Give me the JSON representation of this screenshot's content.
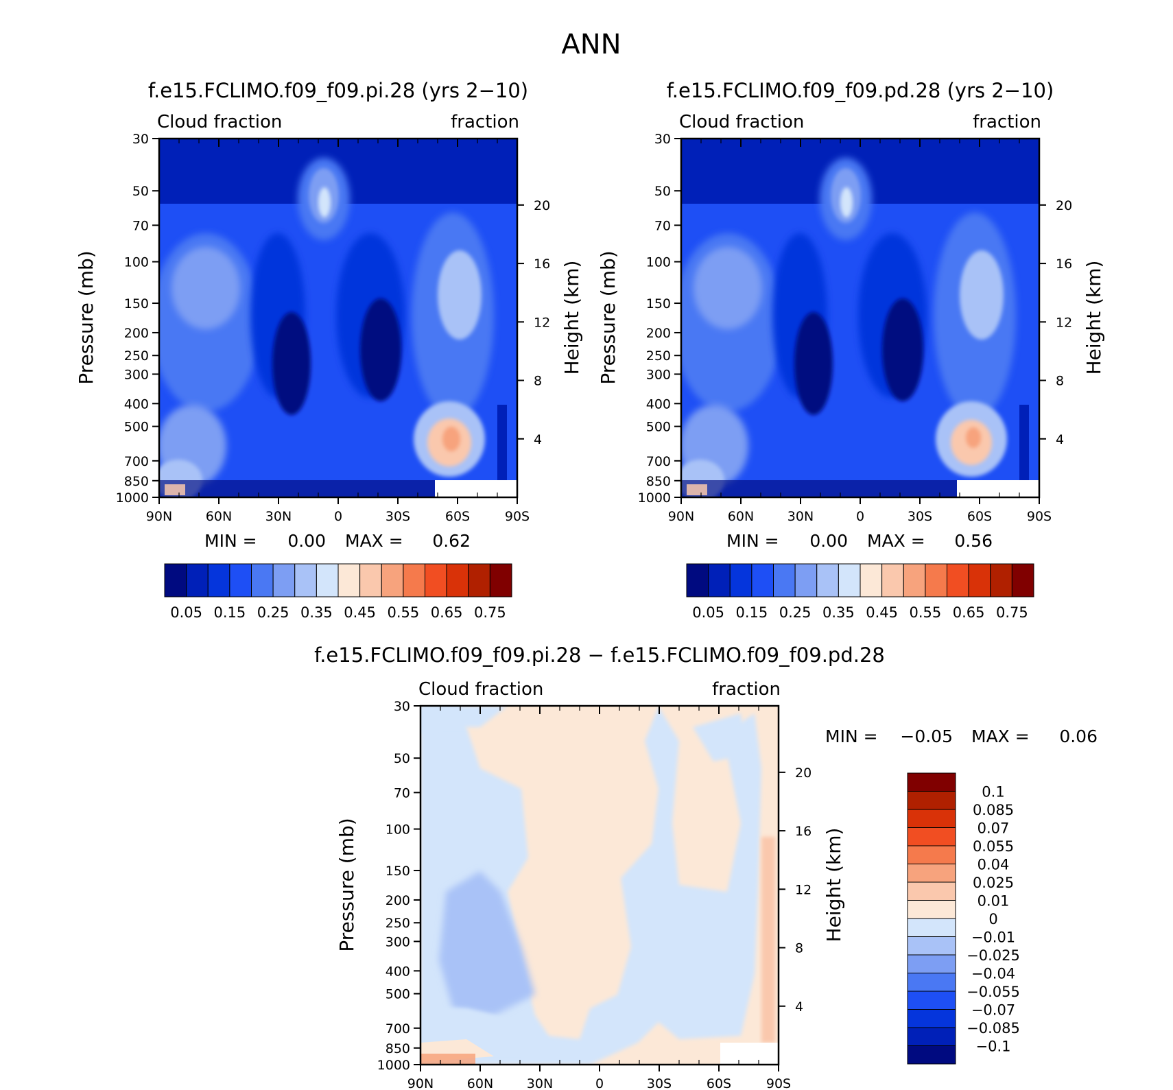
{
  "figure_title": "ANN",
  "chart_data": [
    {
      "type": "heatmap",
      "title": "f.e15.FCLIMO.f09_f09.pi.28 (yrs 2−10)",
      "left_label": "Cloud fraction",
      "right_label": "fraction",
      "ylabel": "Pressure (mb)",
      "ylabel_right": "Height (km)",
      "x_ticks": [
        "90N",
        "60N",
        "30N",
        "0",
        "30S",
        "60S",
        "90S"
      ],
      "x_values": [
        90,
        60,
        30,
        0,
        -30,
        -60,
        -90
      ],
      "y_ticks": [
        "30",
        "50",
        "70",
        "100",
        "150",
        "200",
        "250",
        "300",
        "400",
        "500",
        "700",
        "850",
        "1000"
      ],
      "y_values": [
        30,
        50,
        70,
        100,
        150,
        200,
        250,
        300,
        400,
        500,
        700,
        850,
        1000
      ],
      "y_right_ticks": [
        "20",
        "16",
        "12",
        "8",
        "4"
      ],
      "y_right_values": [
        20,
        16,
        12,
        8,
        4
      ],
      "ylim": [
        1000,
        30
      ],
      "xlim": [
        90,
        -90
      ],
      "min_label": "MIN =",
      "min_value": "0.00",
      "max_label": "MAX =",
      "max_value": "0.62",
      "colorbar_labels": [
        "0.05",
        "0.15",
        "0.25",
        "0.35",
        "0.45",
        "0.55",
        "0.65",
        "0.75"
      ],
      "colorbar_colors": [
        "#000a80",
        "#0020b8",
        "#0535dc",
        "#1e4ff5",
        "#4a78f3",
        "#7d9ef3",
        "#a9c2f7",
        "#d3e5fb",
        "#fce8d7",
        "#fac8ad",
        "#f7a37d",
        "#f57a4c",
        "#f14e22",
        "#d93208",
        "#b02000",
        "#800000"
      ]
    },
    {
      "type": "heatmap",
      "title": "f.e15.FCLIMO.f09_f09.pd.28 (yrs 2−10)",
      "left_label": "Cloud fraction",
      "right_label": "fraction",
      "ylabel": "Pressure (mb)",
      "ylabel_right": "Height (km)",
      "x_ticks": [
        "90N",
        "60N",
        "30N",
        "0",
        "30S",
        "60S",
        "90S"
      ],
      "x_values": [
        90,
        60,
        30,
        0,
        -30,
        -60,
        -90
      ],
      "y_ticks": [
        "30",
        "50",
        "70",
        "100",
        "150",
        "200",
        "250",
        "300",
        "400",
        "500",
        "700",
        "850",
        "1000"
      ],
      "y_values": [
        30,
        50,
        70,
        100,
        150,
        200,
        250,
        300,
        400,
        500,
        700,
        850,
        1000
      ],
      "y_right_ticks": [
        "20",
        "16",
        "12",
        "8",
        "4"
      ],
      "y_right_values": [
        20,
        16,
        12,
        8,
        4
      ],
      "ylim": [
        1000,
        30
      ],
      "xlim": [
        90,
        -90
      ],
      "min_label": "MIN =",
      "min_value": "0.00",
      "max_label": "MAX =",
      "max_value": "0.56",
      "colorbar_labels": [
        "0.05",
        "0.15",
        "0.25",
        "0.35",
        "0.45",
        "0.55",
        "0.65",
        "0.75"
      ],
      "colorbar_colors": [
        "#000a80",
        "#0020b8",
        "#0535dc",
        "#1e4ff5",
        "#4a78f3",
        "#7d9ef3",
        "#a9c2f7",
        "#d3e5fb",
        "#fce8d7",
        "#fac8ad",
        "#f7a37d",
        "#f57a4c",
        "#f14e22",
        "#d93208",
        "#b02000",
        "#800000"
      ]
    },
    {
      "type": "heatmap",
      "title": "f.e15.FCLIMO.f09_f09.pi.28 − f.e15.FCLIMO.f09_f09.pd.28",
      "left_label": "Cloud fraction",
      "right_label": "fraction",
      "ylabel": "Pressure (mb)",
      "ylabel_right": "Height (km)",
      "x_ticks": [
        "90N",
        "60N",
        "30N",
        "0",
        "30S",
        "60S",
        "90S"
      ],
      "x_values": [
        90,
        60,
        30,
        0,
        -30,
        -60,
        -90
      ],
      "y_ticks": [
        "30",
        "50",
        "70",
        "100",
        "150",
        "200",
        "250",
        "300",
        "400",
        "500",
        "700",
        "850",
        "1000"
      ],
      "y_values": [
        30,
        50,
        70,
        100,
        150,
        200,
        250,
        300,
        400,
        500,
        700,
        850,
        1000
      ],
      "y_right_ticks": [
        "20",
        "16",
        "12",
        "8",
        "4"
      ],
      "y_right_values": [
        20,
        16,
        12,
        8,
        4
      ],
      "ylim": [
        1000,
        30
      ],
      "xlim": [
        90,
        -90
      ],
      "min_label": "MIN =",
      "min_value": "−0.05",
      "max_label": "MAX =",
      "max_value": "0.06",
      "colorbar_labels": [
        "0.1",
        "0.085",
        "0.07",
        "0.055",
        "0.04",
        "0.025",
        "0.01",
        "0",
        "−0.01",
        "−0.025",
        "−0.04",
        "−0.055",
        "−0.07",
        "−0.085",
        "−0.1"
      ],
      "colorbar_colors": [
        "#800000",
        "#b02000",
        "#d93208",
        "#f14e22",
        "#f57a4c",
        "#f7a37d",
        "#fac8ad",
        "#fce8d7",
        "#d3e5fb",
        "#a9c2f7",
        "#7d9ef3",
        "#4a78f3",
        "#1e4ff5",
        "#0535dc",
        "#0020b8",
        "#000a80"
      ]
    }
  ]
}
